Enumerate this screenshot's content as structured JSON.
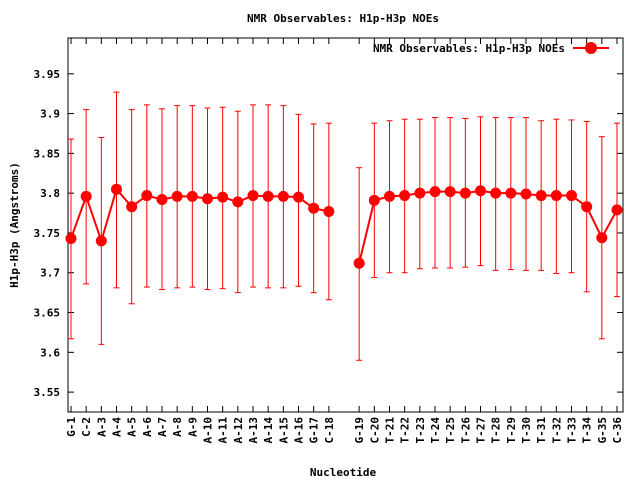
{
  "chart_data": {
    "type": "line",
    "title": "NMR Observables: H1p-H3p NOEs",
    "xlabel": "Nucleotide",
    "ylabel": "H1p-H3p (Angstroms)",
    "ylim": [
      3.525,
      3.995
    ],
    "yticks": [
      3.55,
      3.6,
      3.65,
      3.7,
      3.75,
      3.8,
      3.85,
      3.9,
      3.95
    ],
    "ytick_labels": [
      "3.55",
      "3.6",
      "3.65",
      "3.7",
      "3.75",
      "3.8",
      "3.85",
      "3.9",
      "3.95"
    ],
    "legend": {
      "position": "top-right",
      "label": "NMR Observables: H1p-H3p NOEs"
    },
    "grid": false,
    "color": "#ff0000",
    "categories": [
      "G-1",
      "C-2",
      "A-3",
      "A-4",
      "A-5",
      "A-6",
      "A-7",
      "A-8",
      "A-9",
      "A-10",
      "A-11",
      "A-12",
      "A-13",
      "A-14",
      "A-15",
      "A-16",
      "G-17",
      "C-18",
      "",
      "G-19",
      "C-20",
      "T-21",
      "T-22",
      "T-23",
      "T-24",
      "T-25",
      "T-26",
      "T-27",
      "T-28",
      "T-29",
      "T-30",
      "T-31",
      "T-32",
      "T-33",
      "T-34",
      "G-35",
      "C-36"
    ],
    "series": [
      {
        "values": [
          3.743,
          3.796,
          3.74,
          3.805,
          3.783,
          3.797,
          3.792,
          3.796,
          3.796,
          3.793,
          3.795,
          3.789,
          3.797,
          3.796,
          3.796,
          3.795,
          3.781,
          3.777,
          null,
          3.712,
          3.791,
          3.796,
          3.797,
          3.8,
          3.802,
          3.802,
          3.8,
          3.803,
          3.8,
          3.8,
          3.799,
          3.797,
          3.797,
          3.797,
          3.783,
          3.744,
          3.779
        ],
        "err_low": [
          3.617,
          3.686,
          3.61,
          3.681,
          3.661,
          3.682,
          3.679,
          3.681,
          3.682,
          3.679,
          3.68,
          3.675,
          3.682,
          3.681,
          3.681,
          3.683,
          3.675,
          3.666,
          null,
          3.59,
          3.694,
          3.7,
          3.7,
          3.705,
          3.706,
          3.706,
          3.707,
          3.709,
          3.703,
          3.704,
          3.703,
          3.703,
          3.699,
          3.7,
          3.676,
          3.617,
          3.67
        ],
        "err_high": [
          3.868,
          3.905,
          3.87,
          3.927,
          3.905,
          3.911,
          3.906,
          3.91,
          3.91,
          3.907,
          3.908,
          3.903,
          3.911,
          3.911,
          3.91,
          3.899,
          3.887,
          3.888,
          null,
          3.832,
          3.888,
          3.891,
          3.893,
          3.893,
          3.895,
          3.895,
          3.894,
          3.896,
          3.895,
          3.895,
          3.895,
          3.891,
          3.893,
          3.892,
          3.89,
          3.871,
          3.888
        ]
      }
    ]
  }
}
